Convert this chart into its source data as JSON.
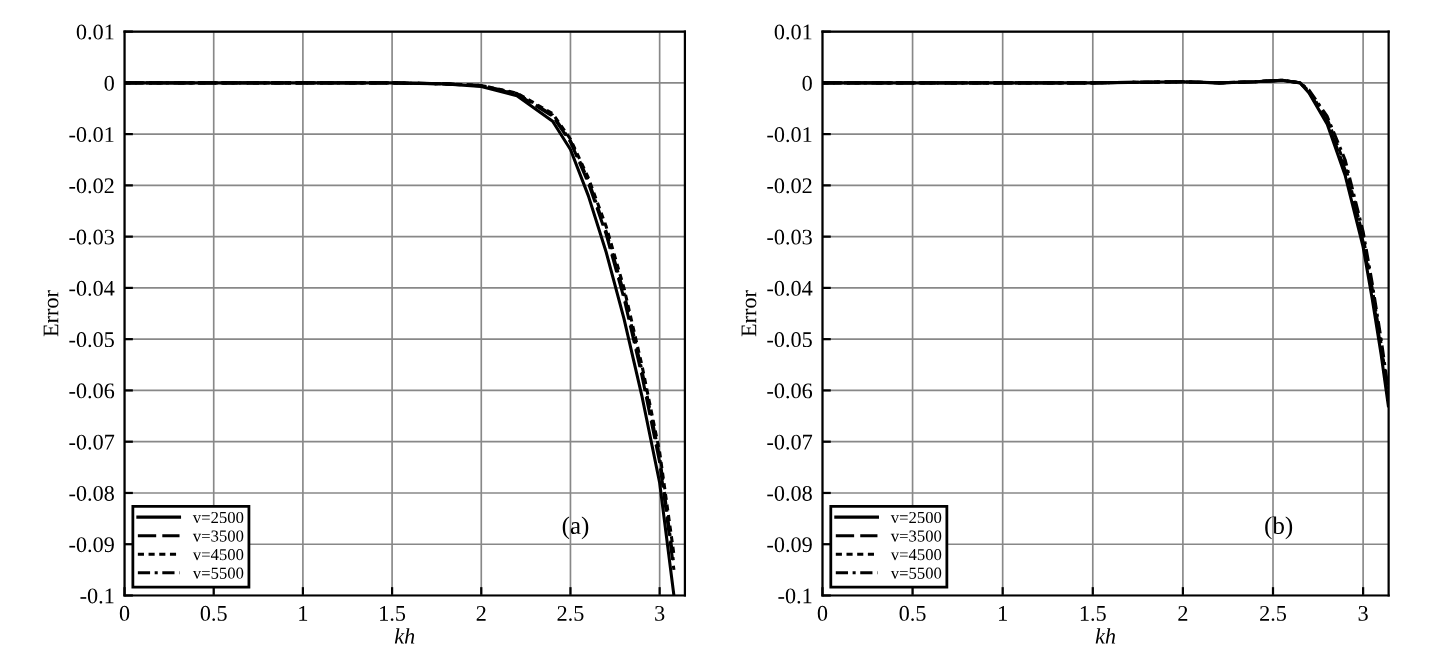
{
  "chart_data": [
    {
      "type": "line",
      "xlabel": "kh",
      "ylabel": "Error",
      "annotations": [
        "(a)"
      ],
      "xlim": [
        0,
        3.1416
      ],
      "ylim": [
        -0.1,
        0.01
      ],
      "xticks": [
        0,
        0.5,
        1,
        1.5,
        2,
        2.5,
        3
      ],
      "yticks": [
        0.01,
        0,
        -0.01,
        -0.02,
        -0.03,
        -0.04,
        -0.05,
        -0.06,
        -0.07,
        -0.08,
        -0.09,
        -0.1
      ],
      "grid": true,
      "legend": "bottom left",
      "x": [
        0,
        0.5,
        1,
        1.5,
        1.8,
        2.0,
        2.2,
        2.4,
        2.5,
        2.6,
        2.7,
        2.8,
        2.9,
        3.0,
        3.08
      ],
      "series": [
        {
          "name": "v=2500",
          "color": "#000000",
          "line_style": "solid",
          "values": [
            0,
            0,
            0,
            0,
            -0.0002,
            -0.0007,
            -0.0025,
            -0.0075,
            -0.013,
            -0.022,
            -0.033,
            -0.046,
            -0.061,
            -0.078,
            -0.1
          ]
        },
        {
          "name": "v=3500",
          "color": "#000000",
          "line_style": "dashed",
          "values": [
            0,
            0,
            0,
            0,
            -0.0002,
            -0.0006,
            -0.0022,
            -0.0065,
            -0.0115,
            -0.0195,
            -0.0295,
            -0.042,
            -0.057,
            -0.074,
            -0.095
          ]
        },
        {
          "name": "v=4500",
          "color": "#000000",
          "line_style": "dotted",
          "values": [
            0,
            0,
            0,
            0,
            -0.0002,
            -0.0005,
            -0.002,
            -0.006,
            -0.011,
            -0.0185,
            -0.028,
            -0.04,
            -0.055,
            -0.072,
            -0.092
          ]
        },
        {
          "name": "v=5500",
          "color": "#000000",
          "line_style": "dashdot",
          "values": [
            0,
            0,
            0,
            0,
            -0.0002,
            -0.0005,
            -0.0021,
            -0.0063,
            -0.0113,
            -0.019,
            -0.029,
            -0.041,
            -0.056,
            -0.073,
            -0.094
          ]
        }
      ]
    },
    {
      "type": "line",
      "xlabel": "kh",
      "ylabel": "Error",
      "annotations": [
        "(b)"
      ],
      "xlim": [
        0,
        3.1416
      ],
      "ylim": [
        -0.1,
        0.01
      ],
      "xticks": [
        0,
        0.5,
        1,
        1.5,
        2,
        2.5,
        3
      ],
      "yticks": [
        0.01,
        0,
        -0.01,
        -0.02,
        -0.03,
        -0.04,
        -0.05,
        -0.06,
        -0.07,
        -0.08,
        -0.09,
        -0.1
      ],
      "grid": true,
      "legend": "bottom left",
      "x": [
        0,
        0.5,
        1,
        1.5,
        2.0,
        2.2,
        2.4,
        2.55,
        2.65,
        2.7,
        2.8,
        2.9,
        3.0,
        3.05,
        3.1,
        3.14
      ],
      "series": [
        {
          "name": "v=2500",
          "color": "#000000",
          "line_style": "solid",
          "values": [
            0,
            0,
            0,
            0,
            0.0002,
            0,
            0.0002,
            0.0005,
            0,
            -0.002,
            -0.008,
            -0.018,
            -0.032,
            -0.042,
            -0.053,
            -0.063
          ]
        },
        {
          "name": "v=3500",
          "color": "#000000",
          "line_style": "dashed",
          "values": [
            0,
            0,
            0,
            0,
            0.0002,
            0,
            0.0002,
            0.0005,
            0,
            -0.0018,
            -0.0075,
            -0.017,
            -0.031,
            -0.041,
            -0.052,
            -0.062
          ]
        },
        {
          "name": "v=4500",
          "color": "#000000",
          "line_style": "dotted",
          "values": [
            0,
            0,
            0,
            0,
            0.0002,
            0,
            0.0002,
            0.0005,
            0,
            -0.0016,
            -0.007,
            -0.016,
            -0.03,
            -0.04,
            -0.051,
            -0.061
          ]
        },
        {
          "name": "v=5500",
          "color": "#000000",
          "line_style": "dashdot",
          "values": [
            0,
            0,
            0,
            0,
            0.0002,
            0,
            0.0002,
            0.0005,
            0,
            -0.0014,
            -0.0065,
            -0.015,
            -0.029,
            -0.039,
            -0.05,
            -0.06
          ]
        }
      ]
    }
  ]
}
